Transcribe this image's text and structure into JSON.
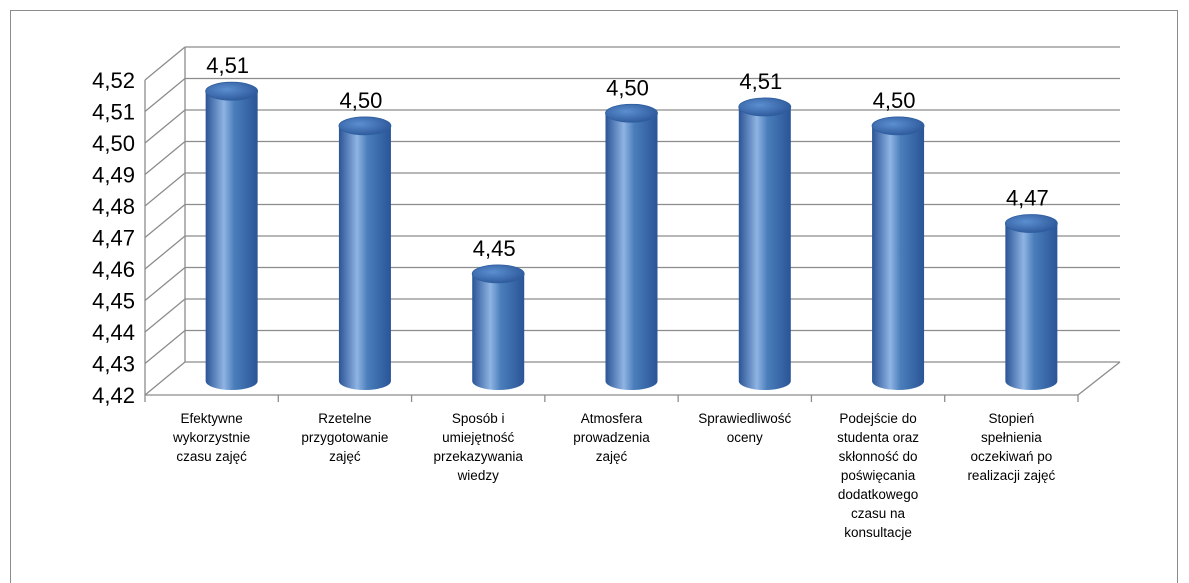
{
  "chart_data": {
    "type": "bar",
    "style": "3d-cylinder",
    "categories": [
      "Efektywne wykorzystnie czasu zajęć",
      "Rzetelne przygotowanie zajęć",
      "Sposób i umiejętność przekazywania wiedzy",
      "Atmosfera prowadzenia zajęć",
      "Sprawiedliwość oceny",
      "Podejście do studenta oraz skłonność do poświęcania dodatkowego czasu na konsultacje",
      "Stopień spełnienia oczekiwań po realizacji zajęć"
    ],
    "category_lines": [
      [
        "Efektywne",
        "wykorzystnie",
        "czasu zajęć"
      ],
      [
        "Rzetelne",
        "przygotowanie",
        "zajęć"
      ],
      [
        "Sposób i",
        "umiejętność",
        "przekazywania",
        "wiedzy"
      ],
      [
        "Atmosfera",
        "prowadzenia",
        "zajęć"
      ],
      [
        "Sprawiedliwość",
        "oceny"
      ],
      [
        "Podejście do",
        "studenta oraz",
        "skłonność do",
        "poświęcania",
        "dodatkowego",
        "czasu na",
        "konsultacje"
      ],
      [
        "Stopień",
        "spełnienia",
        "oczekiwań po",
        "realizacji zajęć"
      ]
    ],
    "values": [
      4.512,
      4.501,
      4.454,
      4.505,
      4.507,
      4.501,
      4.47
    ],
    "data_labels": [
      "4,51",
      "4,50",
      "4,45",
      "4,50",
      "4,51",
      "4,50",
      "4,47"
    ],
    "ylim": [
      4.42,
      4.52
    ],
    "yticks": [
      "4,42",
      "4,43",
      "4,44",
      "4,45",
      "4,46",
      "4,47",
      "4,48",
      "4,49",
      "4,50",
      "4,51",
      "4,52"
    ],
    "grid": true,
    "legend": "none",
    "colors": {
      "bar": "#4a7ebb",
      "bar_light": "#8fb4e3",
      "bar_dark": "#2a5496",
      "grid": "#8c8c8c"
    },
    "title": "",
    "xlabel": "",
    "ylabel": ""
  }
}
